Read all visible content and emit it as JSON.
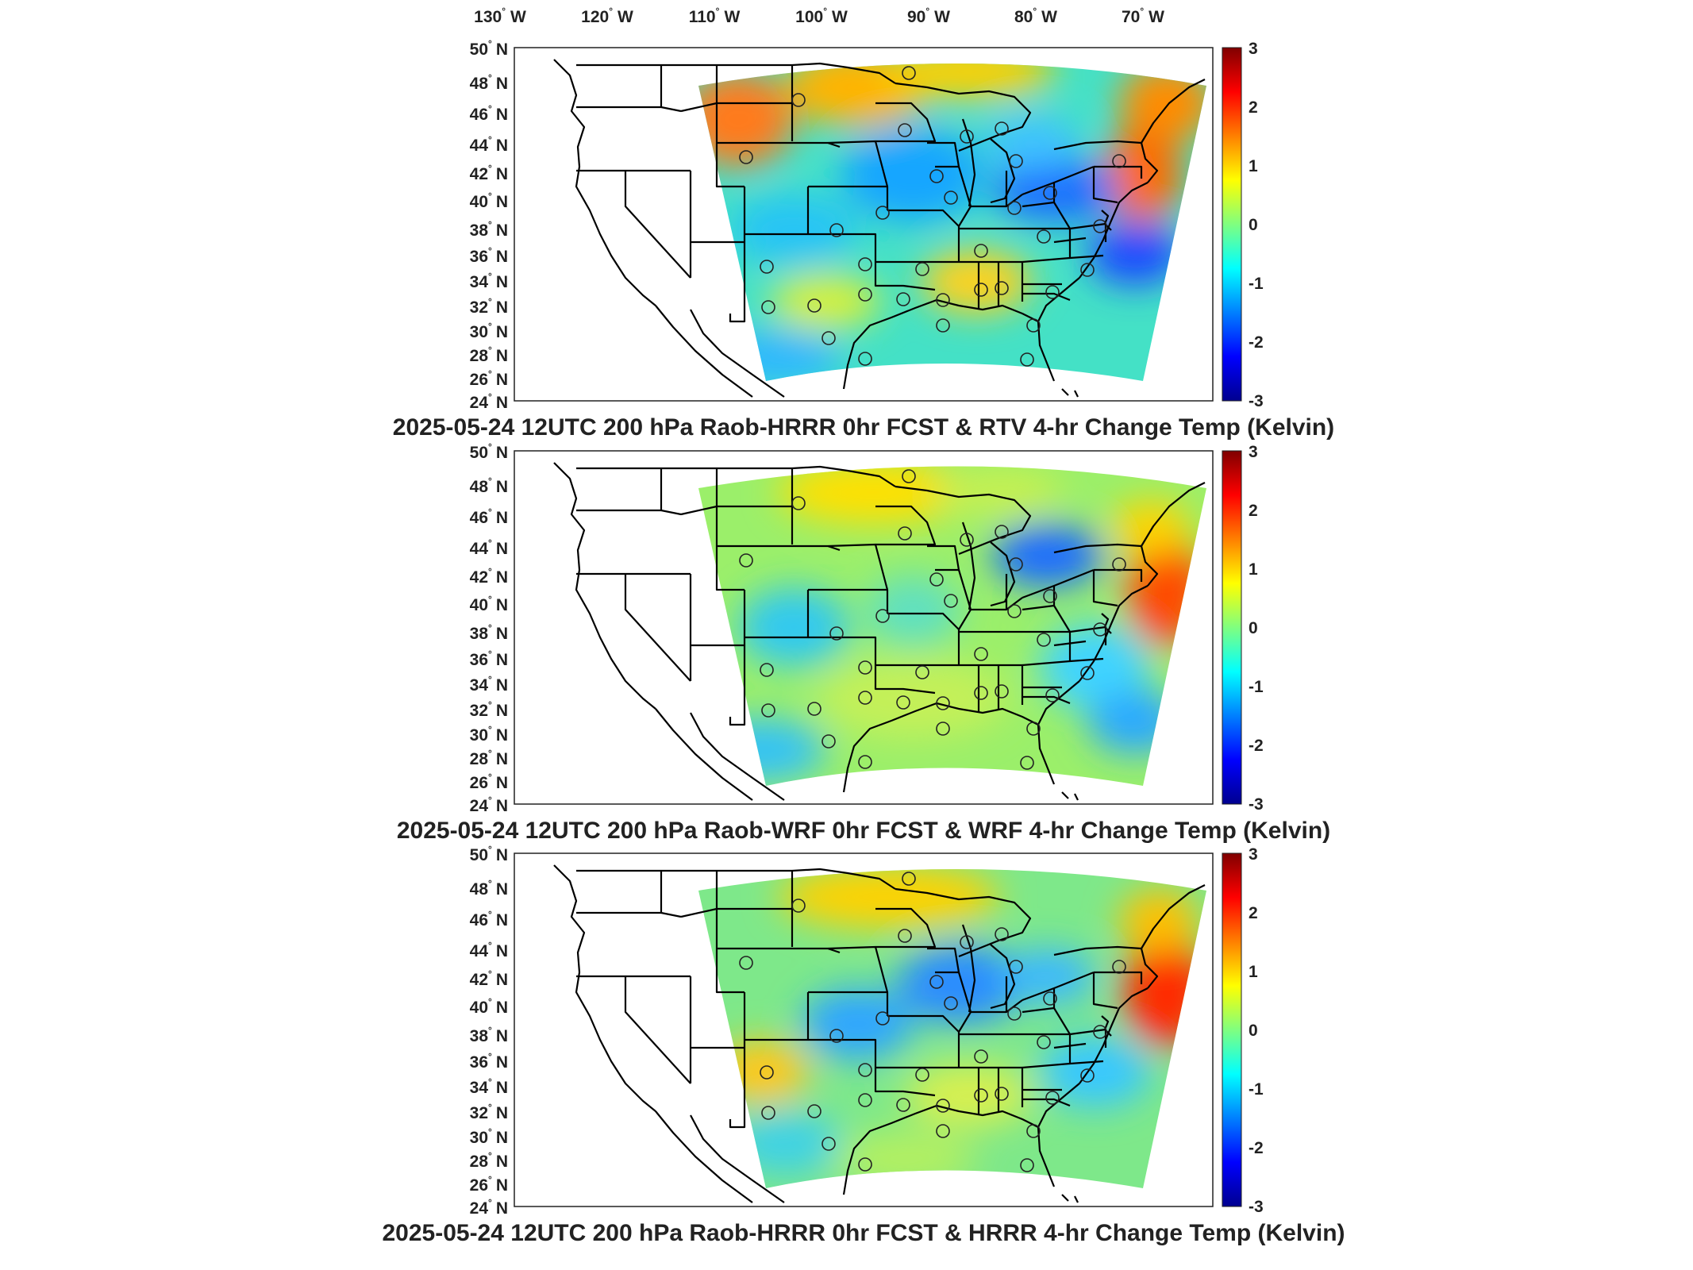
{
  "top_axis": {
    "lon_labels": [
      {
        "deg": "130",
        "hemi": "W"
      },
      {
        "deg": "120",
        "hemi": "W"
      },
      {
        "deg": "110",
        "hemi": "W"
      },
      {
        "deg": "100",
        "hemi": "W"
      },
      {
        "deg": "90",
        "hemi": "W"
      },
      {
        "deg": "80",
        "hemi": "W"
      },
      {
        "deg": "70",
        "hemi": "W"
      }
    ]
  },
  "lat_labels": [
    {
      "deg": "50",
      "hemi": "N"
    },
    {
      "deg": "48",
      "hemi": "N"
    },
    {
      "deg": "46",
      "hemi": "N"
    },
    {
      "deg": "44",
      "hemi": "N"
    },
    {
      "deg": "42",
      "hemi": "N"
    },
    {
      "deg": "40",
      "hemi": "N"
    },
    {
      "deg": "38",
      "hemi": "N"
    },
    {
      "deg": "36",
      "hemi": "N"
    },
    {
      "deg": "34",
      "hemi": "N"
    },
    {
      "deg": "32",
      "hemi": "N"
    },
    {
      "deg": "30",
      "hemi": "N"
    },
    {
      "deg": "28",
      "hemi": "N"
    },
    {
      "deg": "26",
      "hemi": "N"
    },
    {
      "deg": "24",
      "hemi": "N"
    }
  ],
  "colorbar": {
    "ticks": [
      "3",
      "2",
      "1",
      "0",
      "-1",
      "-2",
      "-3"
    ],
    "range": [
      -3,
      3
    ],
    "colormap": "jet",
    "colors": [
      "#00008f",
      "#0000ff",
      "#00ffff",
      "#ffff00",
      "#ff0000",
      "#800000"
    ]
  },
  "panels": [
    {
      "title": "2025-05-24 12UTC 200 hPa Raob-HRRR 0hr FCST & RTV 4-hr Change Temp (Kelvin)"
    },
    {
      "title": "2025-05-24 12UTC 200 hPa Raob-WRF 0hr FCST & WRF 4-hr Change Temp (Kelvin)"
    },
    {
      "title": "2025-05-24 12UTC 200 hPa Raob-HRRR 0hr FCST & HRRR 4-hr Change Temp (Kelvin)"
    }
  ]
}
